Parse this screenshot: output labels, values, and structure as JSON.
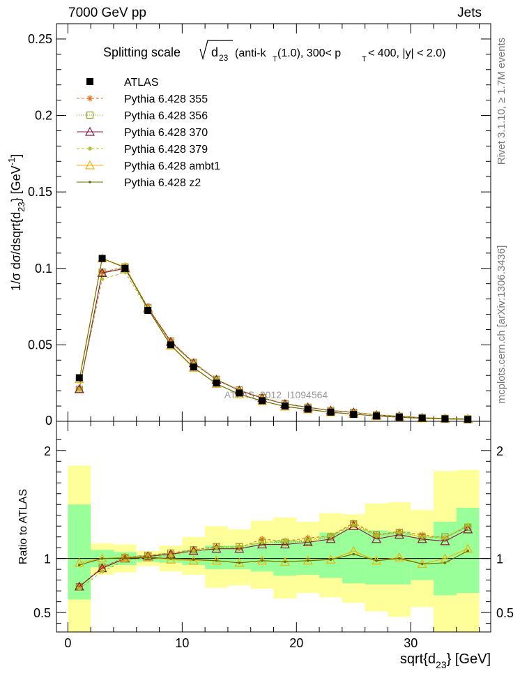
{
  "header": {
    "left": "7000 GeV pp",
    "right": "Jets"
  },
  "side_notes": {
    "rivet": "Rivet 3.1.10, ≥ 1.7M events",
    "mcplots": "mcplots.cern.ch [arXiv:1306.3436]"
  },
  "watermark": "ATLAS_2012_I1094564",
  "title": {
    "prefix": "Splitting scale",
    "var": "d",
    "var_sub": "23",
    "paren_open": "(anti-k",
    "k_sub": "T",
    "mid": "(1.0), 300< p",
    "p_sub": "T",
    "tail": "< 400, |y| < 2.0)"
  },
  "colors": {
    "ATLAS": "#000000",
    "p355": "#e8701a",
    "p356": "#8a9a1b",
    "p370": "#8b1a3a",
    "p379": "#b0c020",
    "ambt1": "#f5b000",
    "z2": "#6b6b00",
    "band_stat": "#99ff99",
    "band_total": "#ffff99"
  },
  "chart_data": [
    {
      "type": "line",
      "panel": "main",
      "ylabel": {
        "pre": "1/σ dσ/dsqrt{d",
        "sub": "23",
        "mid": "} [GeV",
        "sup": "-1",
        "post": "]"
      },
      "xlim": [
        -1,
        37
      ],
      "ylim": [
        0,
        0.26
      ],
      "yticks": [
        {
          "v": 0.05,
          "label": "0.05"
        },
        {
          "v": 0.1,
          "label": "0.1"
        },
        {
          "v": 0.15,
          "label": "0.15"
        },
        {
          "v": 0.2,
          "label": "0.2"
        },
        {
          "v": 0.25,
          "label": "0.25"
        }
      ],
      "bottom_tick_label": "0",
      "legend_position": "top-left",
      "x": [
        1,
        3,
        5,
        7,
        9,
        11,
        13,
        15,
        17,
        19,
        21,
        23,
        25,
        27,
        29,
        31,
        33,
        35
      ],
      "data": {
        "name": "ATLAS",
        "marker": "filled-square",
        "color": "#000000",
        "values": [
          0.0285,
          0.1065,
          0.1,
          0.0725,
          0.05,
          0.0355,
          0.025,
          0.0185,
          0.0135,
          0.01,
          0.008,
          0.006,
          0.0045,
          0.0035,
          0.0027,
          0.002,
          0.0016,
          0.0012
        ]
      },
      "series": [
        {
          "name": "Pythia 6.428 355",
          "marker": "star",
          "dash": "4,3",
          "color": "#e8701a",
          "values": [
            0.021,
            0.0975,
            0.101,
            0.0745,
            0.0525,
            0.0385,
            0.0275,
            0.0205,
            0.0155,
            0.0115,
            0.0093,
            0.0072,
            0.006,
            0.0042,
            0.0034,
            0.0024,
            0.0019,
            0.0016
          ]
        },
        {
          "name": "Pythia 6.428 356",
          "marker": "open-square",
          "dash": "1,2",
          "color": "#8a9a1b",
          "values": [
            0.021,
            0.0975,
            0.101,
            0.0745,
            0.0525,
            0.0385,
            0.0275,
            0.0205,
            0.0155,
            0.0115,
            0.0092,
            0.0071,
            0.0059,
            0.0042,
            0.0033,
            0.0024,
            0.0019,
            0.0016
          ]
        },
        {
          "name": "Pythia 6.428 370",
          "marker": "open-triangle",
          "dash": "",
          "color": "#8b1a3a",
          "values": [
            0.021,
            0.097,
            0.1,
            0.074,
            0.052,
            0.038,
            0.0272,
            0.0202,
            0.0152,
            0.0113,
            0.0091,
            0.007,
            0.0058,
            0.0041,
            0.0033,
            0.0023,
            0.0018,
            0.0015
          ]
        },
        {
          "name": "Pythia 6.428 379",
          "marker": "small-star",
          "dash": "4,3",
          "color": "#b0c020",
          "values": [
            0.0205,
            0.093,
            0.0975,
            0.0735,
            0.0515,
            0.038,
            0.0275,
            0.0205,
            0.0155,
            0.0116,
            0.0093,
            0.0072,
            0.0059,
            0.0042,
            0.0034,
            0.0024,
            0.0019,
            0.0016
          ]
        },
        {
          "name": "Pythia 6.428 ambt1",
          "marker": "open-triangle",
          "dash": "",
          "color": "#f5b000",
          "values": [
            0.0275,
            0.1065,
            0.101,
            0.0735,
            0.0495,
            0.035,
            0.0245,
            0.0177,
            0.0132,
            0.0097,
            0.0078,
            0.0059,
            0.0048,
            0.0034,
            0.0027,
            0.0019,
            0.0016,
            0.0013
          ]
        },
        {
          "name": "Pythia 6.428 z2",
          "marker": "dot",
          "dash": "",
          "color": "#6b6b00",
          "values": [
            0.0268,
            0.1065,
            0.1005,
            0.0735,
            0.0498,
            0.0352,
            0.0246,
            0.0178,
            0.0133,
            0.0097,
            0.0078,
            0.0059,
            0.0047,
            0.0034,
            0.0027,
            0.0019,
            0.0015,
            0.0013
          ]
        }
      ]
    },
    {
      "type": "line",
      "panel": "ratio",
      "ylabel": "Ratio to ATLAS",
      "xlabel": {
        "pre": "sqrt{d",
        "sub": "23",
        "post": "} [GeV]"
      },
      "xlim": [
        -1,
        37
      ],
      "ylim": [
        0.32,
        2.27
      ],
      "xticks": [
        {
          "v": 0,
          "label": "0"
        },
        {
          "v": 10,
          "label": "10"
        },
        {
          "v": 20,
          "label": "20"
        },
        {
          "v": 30,
          "label": "30"
        }
      ],
      "yticks": [
        {
          "v": 0.5,
          "label": "0.5"
        },
        {
          "v": 1,
          "label": "1"
        },
        {
          "v": 2,
          "label": "2"
        }
      ],
      "bins": [
        [
          0,
          2
        ],
        [
          2,
          4
        ],
        [
          4,
          6
        ],
        [
          6,
          8
        ],
        [
          8,
          10
        ],
        [
          10,
          12
        ],
        [
          12,
          14
        ],
        [
          14,
          16
        ],
        [
          16,
          18
        ],
        [
          18,
          20
        ],
        [
          20,
          22
        ],
        [
          22,
          24
        ],
        [
          24,
          26
        ],
        [
          26,
          28
        ],
        [
          28,
          30
        ],
        [
          30,
          32
        ],
        [
          32,
          34
        ],
        [
          34,
          36
        ]
      ],
      "band_total": [
        [
          0.32,
          1.86
        ],
        [
          0.85,
          1.14
        ],
        [
          0.87,
          1.13
        ],
        [
          0.93,
          1.07
        ],
        [
          0.88,
          1.12
        ],
        [
          0.85,
          1.2
        ],
        [
          0.73,
          1.3
        ],
        [
          0.75,
          1.27
        ],
        [
          0.72,
          1.35
        ],
        [
          0.63,
          1.38
        ],
        [
          0.68,
          1.34
        ],
        [
          0.64,
          1.42
        ],
        [
          0.59,
          1.41
        ],
        [
          0.51,
          1.51
        ],
        [
          0.46,
          1.52
        ],
        [
          0.55,
          1.45
        ],
        [
          0.32,
          1.81
        ],
        [
          0.32,
          1.82
        ]
      ],
      "band_stat": [
        [
          0.62,
          1.5
        ],
        [
          0.92,
          1.08
        ],
        [
          0.94,
          1.06
        ],
        [
          0.97,
          1.03
        ],
        [
          0.96,
          1.05
        ],
        [
          0.94,
          1.08
        ],
        [
          0.9,
          1.12
        ],
        [
          0.9,
          1.12
        ],
        [
          0.88,
          1.14
        ],
        [
          0.84,
          1.17
        ],
        [
          0.85,
          1.16
        ],
        [
          0.82,
          1.24
        ],
        [
          0.77,
          1.27
        ],
        [
          0.76,
          1.26
        ],
        [
          0.76,
          1.25
        ],
        [
          0.8,
          1.2
        ],
        [
          0.66,
          1.34
        ],
        [
          0.68,
          1.47
        ]
      ],
      "series": [
        {
          "name": "Pythia 6.428 355",
          "values": [
            0.74,
            0.92,
            1.01,
            1.03,
            1.05,
            1.08,
            1.11,
            1.1,
            1.18,
            1.16,
            1.19,
            1.21,
            1.33,
            1.22,
            1.25,
            1.22,
            1.19,
            1.3
          ]
        },
        {
          "name": "Pythia 6.428 356",
          "values": [
            0.74,
            0.92,
            1.01,
            1.03,
            1.05,
            1.08,
            1.11,
            1.11,
            1.15,
            1.15,
            1.16,
            1.2,
            1.32,
            1.22,
            1.24,
            1.2,
            1.2,
            1.29
          ]
        },
        {
          "name": "Pythia 6.428 370",
          "values": [
            0.74,
            0.91,
            1.0,
            1.02,
            1.04,
            1.07,
            1.09,
            1.09,
            1.13,
            1.13,
            1.15,
            1.18,
            1.3,
            1.18,
            1.22,
            1.18,
            1.16,
            1.27
          ]
        },
        {
          "name": "Pythia 6.428 379",
          "values": [
            0.72,
            0.88,
            0.98,
            1.01,
            1.03,
            1.07,
            1.1,
            1.11,
            1.15,
            1.16,
            1.17,
            1.21,
            1.31,
            1.21,
            1.24,
            1.2,
            1.19,
            1.31
          ]
        },
        {
          "name": "Pythia 6.428 ambt1",
          "values": [
            0.96,
            1.0,
            1.01,
            1.01,
            0.99,
            0.98,
            0.98,
            0.96,
            0.98,
            0.97,
            0.98,
            0.99,
            1.07,
            0.98,
            1.01,
            0.95,
            1.0,
            1.09
          ]
        },
        {
          "name": "Pythia 6.428 z2",
          "values": [
            0.94,
            1.0,
            1.005,
            1.01,
            1.0,
            0.99,
            0.98,
            0.96,
            0.98,
            0.97,
            0.98,
            0.99,
            1.04,
            0.98,
            1.0,
            0.95,
            0.96,
            1.07
          ]
        }
      ]
    }
  ]
}
